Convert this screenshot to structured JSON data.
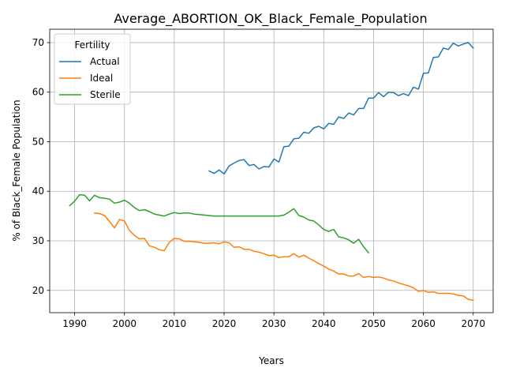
{
  "chart_data": {
    "type": "line",
    "title": "Average_ABORTION_OK_Black_Female_Population",
    "xlabel": "Years",
    "ylabel": "% of Black_Female Population",
    "xlim": [
      1985,
      2074
    ],
    "ylim": [
      15.5,
      72.7
    ],
    "xticks": [
      1990,
      2000,
      2010,
      2020,
      2030,
      2040,
      2050,
      2060,
      2070
    ],
    "yticks": [
      20,
      30,
      40,
      50,
      60,
      70
    ],
    "grid": true,
    "legend": {
      "title": "Fertility",
      "placement": "upper-left"
    },
    "series": [
      {
        "name": "Actual",
        "color": "#1f77b4",
        "x": [
          2017,
          2018,
          2019,
          2020,
          2021,
          2022,
          2023,
          2024,
          2025,
          2026,
          2027,
          2028,
          2029,
          2030,
          2031,
          2032,
          2033,
          2034,
          2035,
          2036,
          2037,
          2038,
          2039,
          2040,
          2041,
          2042,
          2043,
          2044,
          2045,
          2046,
          2047,
          2048,
          2049,
          2050,
          2051,
          2052,
          2053,
          2054,
          2055,
          2056,
          2057,
          2058,
          2059,
          2060,
          2061,
          2062,
          2063,
          2064,
          2065,
          2066,
          2067,
          2068,
          2069,
          2070
        ],
        "y": [
          44.1,
          43.6,
          44.3,
          43.5,
          45.1,
          45.7,
          46.2,
          46.4,
          45.2,
          45.4,
          44.5,
          45.0,
          44.9,
          46.5,
          45.9,
          49.0,
          49.1,
          50.6,
          50.7,
          51.9,
          51.7,
          52.8,
          53.1,
          52.6,
          53.7,
          53.5,
          55.0,
          54.7,
          55.8,
          55.4,
          56.7,
          56.7,
          58.8,
          58.8,
          59.9,
          59.1,
          60.0,
          59.9,
          59.3,
          59.7,
          59.3,
          61.0,
          60.6,
          63.8,
          63.9,
          67.0,
          67.1,
          68.9,
          68.6,
          69.9,
          69.3,
          69.7,
          70.0,
          68.9
        ]
      },
      {
        "name": "Ideal",
        "color": "#ff7f0e",
        "x": [
          1994,
          1995,
          1996,
          1997,
          1998,
          1999,
          2000,
          2001,
          2002,
          2003,
          2004,
          2005,
          2006,
          2007,
          2008,
          2009,
          2010,
          2011,
          2012,
          2013,
          2014,
          2015,
          2016,
          2017,
          2018,
          2019,
          2020,
          2021,
          2022,
          2023,
          2024,
          2025,
          2026,
          2027,
          2028,
          2029,
          2030,
          2031,
          2032,
          2033,
          2034,
          2035,
          2036,
          2037,
          2038,
          2039,
          2040,
          2041,
          2042,
          2043,
          2044,
          2045,
          2046,
          2047,
          2048,
          2049,
          2050,
          2051,
          2052,
          2053,
          2054,
          2055,
          2056,
          2057,
          2058,
          2059,
          2060,
          2061,
          2062,
          2063,
          2064,
          2065,
          2066,
          2067,
          2068,
          2069,
          2070
        ],
        "y": [
          35.6,
          35.5,
          35.1,
          33.9,
          32.6,
          34.3,
          34.0,
          32.1,
          31.1,
          30.4,
          30.5,
          29.0,
          28.7,
          28.2,
          28.0,
          29.7,
          30.5,
          30.4,
          29.9,
          29.9,
          29.8,
          29.7,
          29.5,
          29.5,
          29.6,
          29.4,
          29.8,
          29.6,
          28.7,
          28.8,
          28.3,
          28.3,
          27.9,
          27.7,
          27.4,
          27.0,
          27.1,
          26.6,
          26.8,
          26.8,
          27.4,
          26.7,
          27.1,
          26.5,
          26.0,
          25.4,
          24.9,
          24.3,
          23.9,
          23.3,
          23.3,
          22.9,
          22.9,
          23.4,
          22.6,
          22.8,
          22.6,
          22.7,
          22.5,
          22.1,
          21.9,
          21.5,
          21.2,
          20.9,
          20.5,
          19.8,
          20.0,
          19.6,
          19.7,
          19.4,
          19.4,
          19.4,
          19.3,
          19.0,
          18.9,
          18.2,
          18.0
        ]
      },
      {
        "name": "Sterile",
        "color": "#2ca02c",
        "x": [
          1989,
          1990,
          1991,
          1992,
          1993,
          1994,
          1995,
          1996,
          1997,
          1998,
          1999,
          2000,
          2001,
          2002,
          2003,
          2004,
          2005,
          2006,
          2007,
          2008,
          2009,
          2010,
          2011,
          2012,
          2013,
          2014,
          2015,
          2016,
          2017,
          2018,
          2019,
          2020,
          2021,
          2022,
          2023,
          2024,
          2025,
          2026,
          2027,
          2028,
          2029,
          2030,
          2031,
          2032,
          2033,
          2034,
          2035,
          2036,
          2037,
          2038,
          2039,
          2040,
          2041,
          2042,
          2043,
          2044,
          2045,
          2046,
          2047,
          2048,
          2049
        ],
        "y": [
          37.1,
          38.0,
          39.3,
          39.2,
          38.1,
          39.2,
          38.7,
          38.6,
          38.4,
          37.6,
          37.8,
          38.2,
          37.6,
          36.7,
          36.1,
          36.3,
          35.9,
          35.4,
          35.2,
          35.0,
          35.4,
          35.7,
          35.5,
          35.6,
          35.6,
          35.4,
          35.3,
          35.2,
          35.1,
          35.0,
          35.0,
          35.0,
          35.0,
          35.0,
          35.0,
          35.0,
          35.0,
          35.0,
          35.0,
          35.0,
          35.0,
          35.0,
          35.0,
          35.2,
          35.8,
          36.5,
          35.1,
          34.8,
          34.2,
          34.0,
          33.2,
          32.3,
          31.9,
          32.3,
          30.8,
          30.6,
          30.2,
          29.5,
          30.3,
          28.8,
          27.6
        ]
      }
    ]
  }
}
